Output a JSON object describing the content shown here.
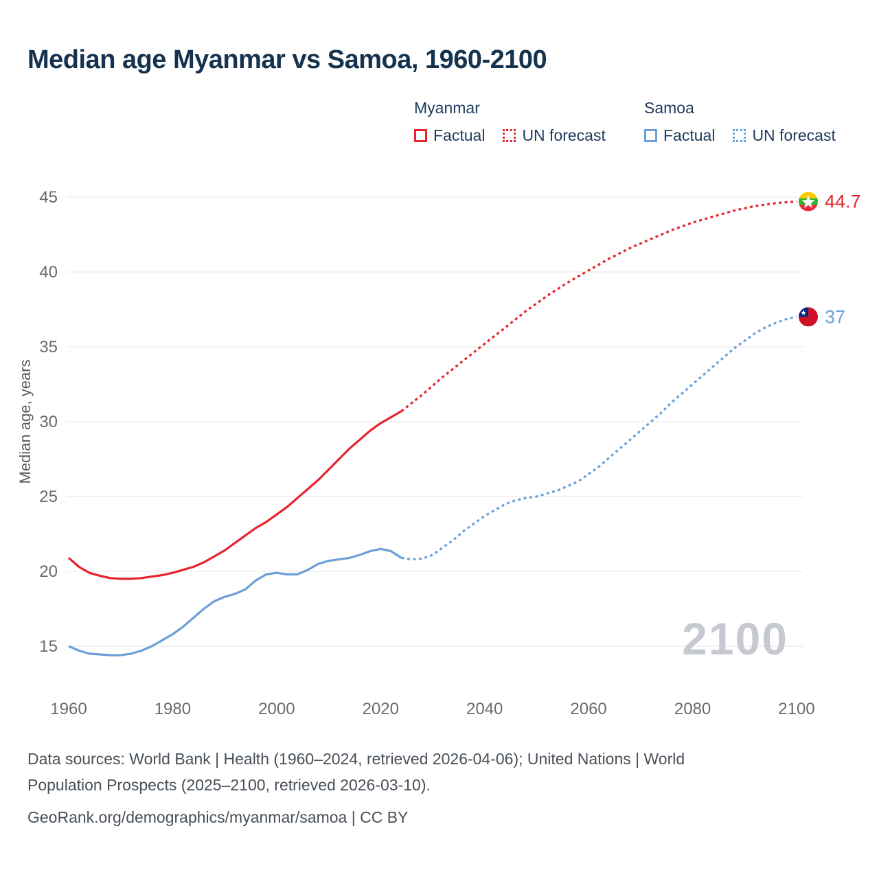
{
  "title": "Median age Myanmar vs Samoa, 1960-2100",
  "legend": {
    "groups": [
      {
        "name": "Myanmar",
        "factual": "Factual",
        "forecast": "UN forecast"
      },
      {
        "name": "Samoa",
        "factual": "Factual",
        "forecast": "UN forecast"
      }
    ]
  },
  "colors": {
    "myanmar": "#e8232d",
    "samoa": "#6aa0d8",
    "title": "#15324e",
    "gridline": "#e9eaec",
    "watermark": "#c6cad0"
  },
  "watermark": "2100",
  "footer": {
    "line1": "Data sources: World Bank | Health (1960–2024, retrieved 2026-04-06); United Nations | World",
    "line2": "Population Prospects (2025–2100, retrieved 2026-03-10).",
    "line3": "GeoRank.org/demographics/myanmar/samoa | CC BY"
  },
  "chart_data": {
    "type": "line",
    "title": "Median age Myanmar vs Samoa, 1960-2100",
    "xlabel": "",
    "ylabel": "Median age, years",
    "xticks": [
      1960,
      1980,
      2000,
      2020,
      2040,
      2060,
      2080,
      2100
    ],
    "yticks": [
      15,
      20,
      25,
      30,
      35,
      40,
      45
    ],
    "xlim": [
      1960,
      2100
    ],
    "ylim": [
      15,
      45
    ],
    "grid": "horizontal",
    "legend_position": "top",
    "series": [
      {
        "key": "myanmar-factual",
        "name": "Myanmar Factual",
        "color": "#e8232d",
        "style": "solid",
        "points": [
          [
            1960,
            20.9
          ],
          [
            1962,
            20.3
          ],
          [
            1964,
            19.9
          ],
          [
            1966,
            19.7
          ],
          [
            1968,
            19.55
          ],
          [
            1970,
            19.5
          ],
          [
            1972,
            19.5
          ],
          [
            1974,
            19.55
          ],
          [
            1976,
            19.65
          ],
          [
            1978,
            19.75
          ],
          [
            1980,
            19.9
          ],
          [
            1982,
            20.1
          ],
          [
            1984,
            20.3
          ],
          [
            1986,
            20.6
          ],
          [
            1988,
            21.0
          ],
          [
            1990,
            21.4
          ],
          [
            1992,
            21.9
          ],
          [
            1994,
            22.4
          ],
          [
            1996,
            22.9
          ],
          [
            1998,
            23.3
          ],
          [
            2000,
            23.8
          ],
          [
            2002,
            24.3
          ],
          [
            2004,
            24.9
          ],
          [
            2006,
            25.5
          ],
          [
            2008,
            26.1
          ],
          [
            2010,
            26.8
          ],
          [
            2012,
            27.5
          ],
          [
            2014,
            28.2
          ],
          [
            2016,
            28.8
          ],
          [
            2018,
            29.4
          ],
          [
            2020,
            29.9
          ],
          [
            2022,
            30.3
          ],
          [
            2024,
            30.7
          ]
        ]
      },
      {
        "key": "myanmar-forecast",
        "name": "Myanmar UN forecast",
        "color": "#e8232d",
        "style": "dashed",
        "end_label": "44.7",
        "end_value": 44.7,
        "end_flag": "myanmar",
        "points": [
          [
            2024,
            30.7
          ],
          [
            2028,
            31.8
          ],
          [
            2032,
            33.0
          ],
          [
            2036,
            34.1
          ],
          [
            2040,
            35.2
          ],
          [
            2044,
            36.3
          ],
          [
            2048,
            37.4
          ],
          [
            2052,
            38.4
          ],
          [
            2056,
            39.3
          ],
          [
            2060,
            40.1
          ],
          [
            2064,
            40.9
          ],
          [
            2068,
            41.6
          ],
          [
            2072,
            42.2
          ],
          [
            2076,
            42.8
          ],
          [
            2080,
            43.3
          ],
          [
            2084,
            43.7
          ],
          [
            2088,
            44.1
          ],
          [
            2092,
            44.4
          ],
          [
            2096,
            44.6
          ],
          [
            2100,
            44.7
          ]
        ]
      },
      {
        "key": "samoa-factual",
        "name": "Samoa Factual",
        "color": "#6aa0d8",
        "style": "solid",
        "points": [
          [
            1960,
            15.0
          ],
          [
            1962,
            14.7
          ],
          [
            1964,
            14.5
          ],
          [
            1966,
            14.45
          ],
          [
            1968,
            14.4
          ],
          [
            1970,
            14.4
          ],
          [
            1972,
            14.5
          ],
          [
            1974,
            14.7
          ],
          [
            1976,
            15.0
          ],
          [
            1978,
            15.4
          ],
          [
            1980,
            15.8
          ],
          [
            1982,
            16.3
          ],
          [
            1984,
            16.9
          ],
          [
            1986,
            17.5
          ],
          [
            1988,
            18.0
          ],
          [
            1990,
            18.3
          ],
          [
            1992,
            18.5
          ],
          [
            1994,
            18.8
          ],
          [
            1996,
            19.4
          ],
          [
            1998,
            19.8
          ],
          [
            2000,
            19.9
          ],
          [
            2002,
            19.8
          ],
          [
            2004,
            19.8
          ],
          [
            2006,
            20.1
          ],
          [
            2008,
            20.5
          ],
          [
            2010,
            20.7
          ],
          [
            2012,
            20.8
          ],
          [
            2014,
            20.9
          ],
          [
            2016,
            21.1
          ],
          [
            2018,
            21.35
          ],
          [
            2020,
            21.5
          ],
          [
            2022,
            21.35
          ],
          [
            2024,
            20.9
          ]
        ]
      },
      {
        "key": "samoa-forecast",
        "name": "Samoa UN forecast",
        "color": "#6aa0d8",
        "style": "dashed",
        "end_label": "37",
        "end_value": 37,
        "end_flag": "samoa",
        "points": [
          [
            2024,
            20.9
          ],
          [
            2026,
            20.8
          ],
          [
            2028,
            20.85
          ],
          [
            2030,
            21.1
          ],
          [
            2032,
            21.6
          ],
          [
            2034,
            22.1
          ],
          [
            2036,
            22.7
          ],
          [
            2038,
            23.2
          ],
          [
            2040,
            23.7
          ],
          [
            2042,
            24.1
          ],
          [
            2044,
            24.5
          ],
          [
            2046,
            24.75
          ],
          [
            2048,
            24.9
          ],
          [
            2050,
            25.0
          ],
          [
            2052,
            25.2
          ],
          [
            2054,
            25.4
          ],
          [
            2056,
            25.7
          ],
          [
            2058,
            26.0
          ],
          [
            2060,
            26.5
          ],
          [
            2062,
            27.0
          ],
          [
            2064,
            27.6
          ],
          [
            2066,
            28.2
          ],
          [
            2068,
            28.8
          ],
          [
            2070,
            29.4
          ],
          [
            2072,
            30.0
          ],
          [
            2074,
            30.6
          ],
          [
            2076,
            31.3
          ],
          [
            2078,
            31.9
          ],
          [
            2080,
            32.5
          ],
          [
            2082,
            33.1
          ],
          [
            2084,
            33.7
          ],
          [
            2086,
            34.3
          ],
          [
            2088,
            34.9
          ],
          [
            2090,
            35.4
          ],
          [
            2092,
            35.9
          ],
          [
            2094,
            36.3
          ],
          [
            2096,
            36.6
          ],
          [
            2098,
            36.85
          ],
          [
            2100,
            37.0
          ]
        ]
      }
    ]
  }
}
